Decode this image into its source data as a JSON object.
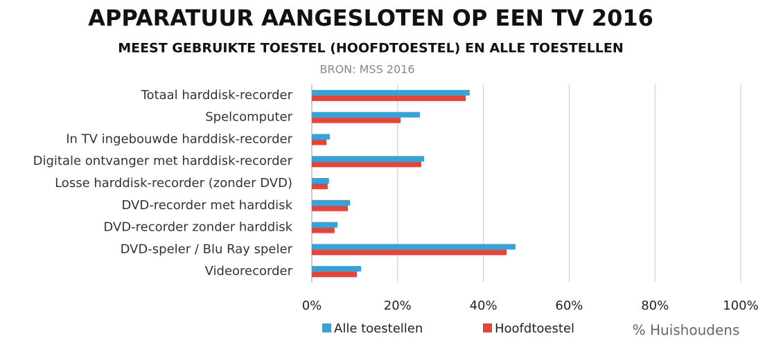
{
  "chart_data": {
    "type": "hbar",
    "title": "APPARATUUR AANGESLOTEN OP EEN TV 2016",
    "subtitle": "MEEST GEBRUIKTE TOESTEL (HOOFDTOESTEL) EN ALLE TOESTELLEN",
    "source": "BRON: MSS 2016",
    "x_label": "% Huishoudens",
    "categories": [
      "Totaal harddisk-recorder",
      "Spelcomputer",
      "In TV ingebouwde harddisk-recorder",
      "Digitale ontvanger met harddisk-recorder",
      "Losse harddisk-recorder (zonder DVD)",
      "DVD-recorder met harddisk",
      "DVD-recorder zonder harddisk",
      "DVD-speler / Blu Ray speler",
      "Videorecorder"
    ],
    "series": [
      {
        "name": "Alle toestellen",
        "color": "#33a3dc",
        "values": [
          36.8,
          25.2,
          4.2,
          26.2,
          4.0,
          8.9,
          6.0,
          47.5,
          11.5
        ]
      },
      {
        "name": "Hoofdtoestel",
        "color": "#e8433a",
        "values": [
          35.9,
          20.7,
          3.4,
          25.5,
          3.7,
          8.4,
          5.3,
          45.4,
          10.5
        ]
      }
    ],
    "xlim": [
      0,
      100
    ],
    "xticks": [
      {
        "value": 0,
        "label": "0%"
      },
      {
        "value": 20,
        "label": "20%"
      },
      {
        "value": 40,
        "label": "40%"
      },
      {
        "value": 60,
        "label": "60%"
      },
      {
        "value": 80,
        "label": "80%"
      },
      {
        "value": 100,
        "label": "100%"
      }
    ],
    "grid": true,
    "legend": "bottom"
  }
}
